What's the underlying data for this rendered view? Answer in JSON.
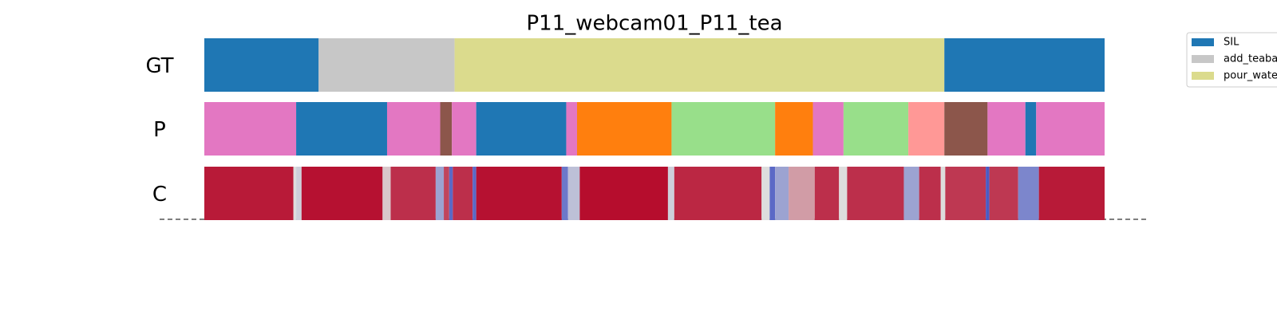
{
  "chart_data": {
    "type": "segmentation",
    "title": "P11_webcam01_P11_tea",
    "xlim": [
      0,
      100
    ],
    "legend": [
      {
        "name": "SIL",
        "color": "#1f77b4"
      },
      {
        "name": "add_teabag",
        "color": "#c7c7c7"
      },
      {
        "name": "pour_water",
        "color": "#dbdb8d"
      }
    ],
    "rows": [
      {
        "label": "GT",
        "segments": [
          {
            "start": 0,
            "end": 12.7,
            "color": "#1f77b4"
          },
          {
            "start": 12.7,
            "end": 27.8,
            "color": "#c7c7c7"
          },
          {
            "start": 27.8,
            "end": 82.2,
            "color": "#dbdb8d"
          },
          {
            "start": 82.2,
            "end": 100,
            "color": "#1f77b4"
          }
        ]
      },
      {
        "label": "P",
        "segments": [
          {
            "start": 0,
            "end": 10.2,
            "color": "#e377c2"
          },
          {
            "start": 10.2,
            "end": 20.3,
            "color": "#1f77b4"
          },
          {
            "start": 20.3,
            "end": 26.2,
            "color": "#e377c2"
          },
          {
            "start": 26.2,
            "end": 27.5,
            "color": "#8c564b"
          },
          {
            "start": 27.5,
            "end": 30.2,
            "color": "#e377c2"
          },
          {
            "start": 30.2,
            "end": 40.2,
            "color": "#1f77b4"
          },
          {
            "start": 40.2,
            "end": 41.4,
            "color": "#e377c2"
          },
          {
            "start": 41.4,
            "end": 51.9,
            "color": "#ff7f0e"
          },
          {
            "start": 51.9,
            "end": 63.4,
            "color": "#98df8a"
          },
          {
            "start": 63.4,
            "end": 67.6,
            "color": "#ff7f0e"
          },
          {
            "start": 67.6,
            "end": 71.0,
            "color": "#e377c2"
          },
          {
            "start": 71.0,
            "end": 78.2,
            "color": "#98df8a"
          },
          {
            "start": 78.2,
            "end": 82.2,
            "color": "#ff9896"
          },
          {
            "start": 82.2,
            "end": 87.0,
            "color": "#8c564b"
          },
          {
            "start": 87.0,
            "end": 91.2,
            "color": "#e377c2"
          },
          {
            "start": 91.2,
            "end": 92.4,
            "color": "#1f77b4"
          },
          {
            "start": 92.4,
            "end": 100,
            "color": "#e377c2"
          }
        ]
      },
      {
        "label": "C",
        "edges": [
          0,
          9.9,
          10.2,
          10.8,
          19.8,
          20.7,
          25.7,
          26.6,
          27.2,
          27.6,
          29.8,
          30.2,
          39.7,
          40.4,
          41.7,
          51.5,
          52.2,
          61.9,
          62.8,
          63.4,
          64.9,
          67.8,
          70.5,
          71.4,
          77.7,
          79.4,
          81.8,
          82.3,
          86.8,
          87.2,
          90.4,
          92.7,
          100
        ],
        "values": [
          0.95,
          0.5,
          0.45,
          0.97,
          0.55,
          0.9,
          0.3,
          0.85,
          0.1,
          0.9,
          0.1,
          0.97,
          0.15,
          0.4,
          0.98,
          0.45,
          0.92,
          0.5,
          0.1,
          0.3,
          0.65,
          0.9,
          0.5,
          0.9,
          0.3,
          0.9,
          0.5,
          0.88,
          0.05,
          0.88,
          0.2,
          0.95
        ]
      }
    ]
  }
}
